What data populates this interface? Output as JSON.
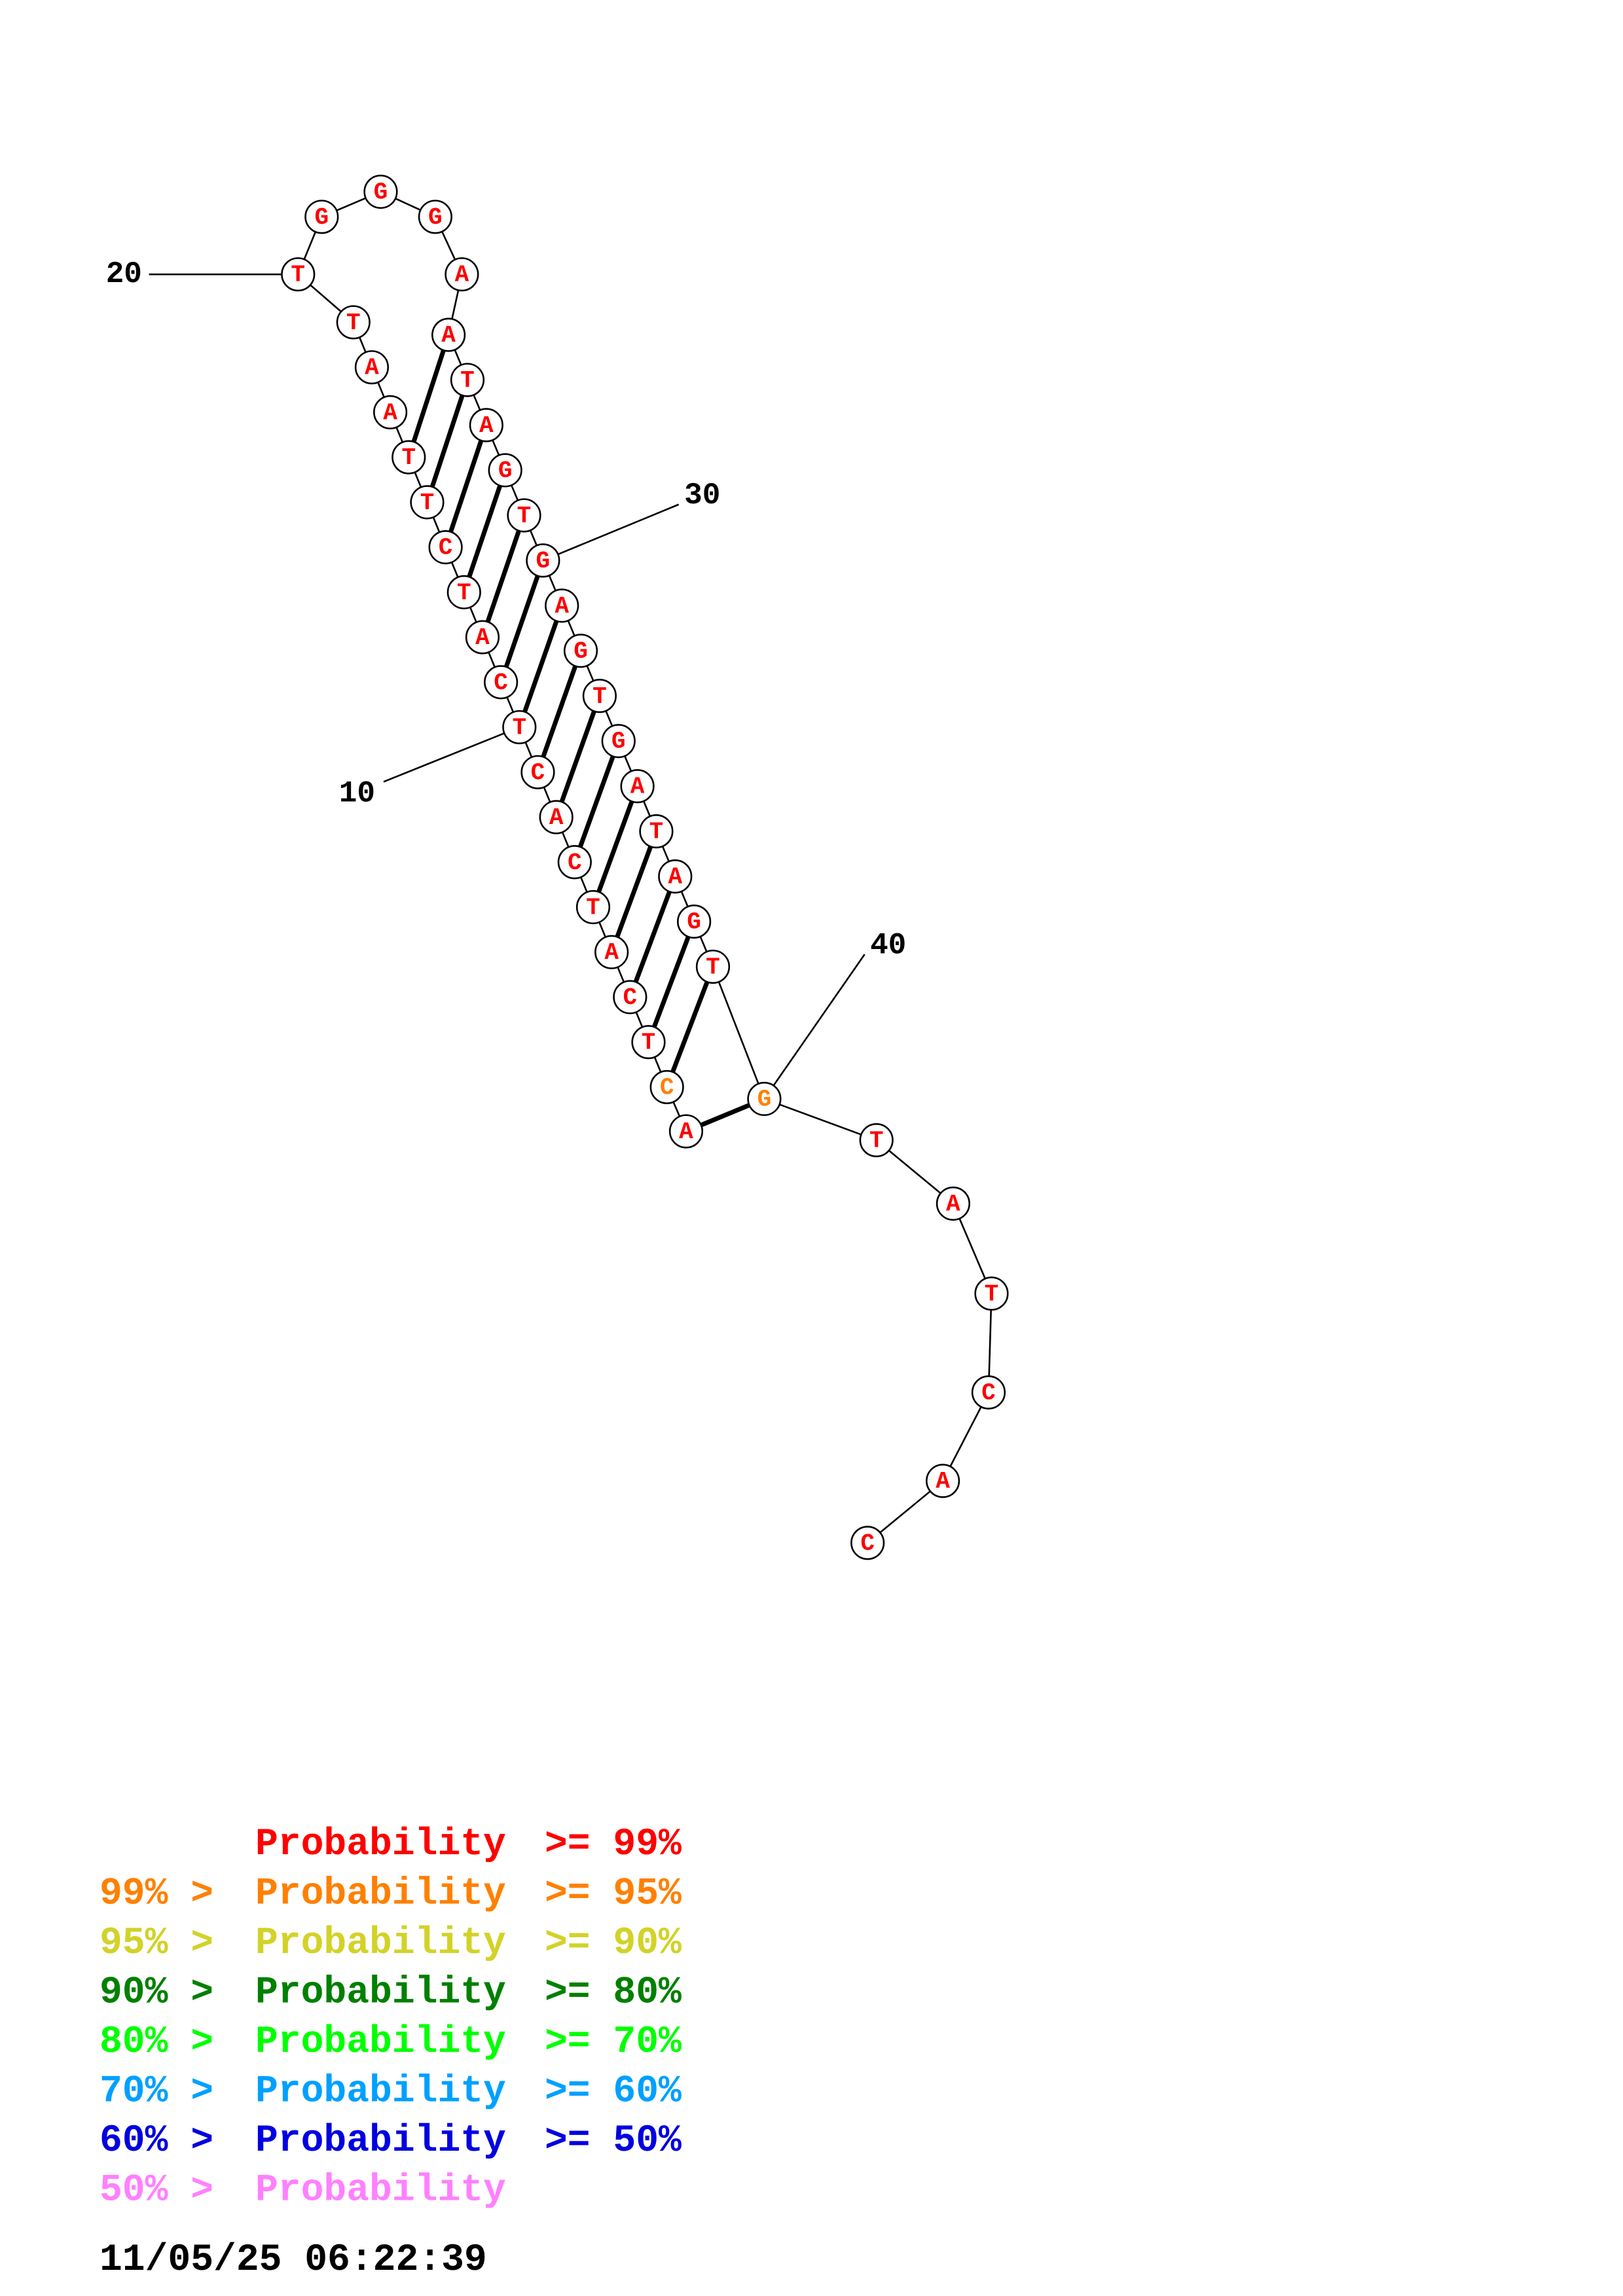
{
  "sequence": [
    "A",
    "C",
    "T",
    "C",
    "A",
    "T",
    "C",
    "A",
    "C",
    "T",
    "C",
    "A",
    "T",
    "C",
    "T",
    "T",
    "A",
    "A",
    "T",
    "T",
    "G",
    "G",
    "G",
    "A",
    "A",
    "T",
    "A",
    "G",
    "T",
    "G",
    "A",
    "G",
    "T",
    "G",
    "A",
    "T",
    "A",
    "G",
    "T",
    "G",
    "T",
    "A",
    "T",
    "C",
    "A",
    "C"
  ],
  "colors": [
    "red",
    "orange",
    "red",
    "red",
    "red",
    "red",
    "red",
    "red",
    "red",
    "red",
    "red",
    "red",
    "red",
    "red",
    "red",
    "red",
    "red",
    "red",
    "red",
    "red",
    "red",
    "red",
    "red",
    "red",
    "red",
    "red",
    "red",
    "red",
    "red",
    "red",
    "red",
    "red",
    "red",
    "red",
    "red",
    "red",
    "red",
    "red",
    "red",
    "orange",
    "red",
    "red",
    "red",
    "red",
    "red",
    "red"
  ],
  "position_labels": [
    {
      "text": "10",
      "index": 10
    },
    {
      "text": "20",
      "index": 20
    },
    {
      "text": "30",
      "index": 30
    },
    {
      "text": "40",
      "index": 40
    }
  ],
  "legend": [
    {
      "prefix": "",
      "mid": "Probability",
      "suffix": ">= 99%",
      "color": "#ff0000"
    },
    {
      "prefix": "99% >",
      "mid": "Probability",
      "suffix": ">= 95%",
      "color": "#ff8000"
    },
    {
      "prefix": "95% >",
      "mid": "Probability",
      "suffix": ">= 90%",
      "color": "#d2d228"
    },
    {
      "prefix": "90% >",
      "mid": "Probability",
      "suffix": ">= 80%",
      "color": "#008000"
    },
    {
      "prefix": "80% >",
      "mid": "Probability",
      "suffix": ">= 70%",
      "color": "#00ff00"
    },
    {
      "prefix": "70% >",
      "mid": "Probability",
      "suffix": ">= 60%",
      "color": "#00a0ff"
    },
    {
      "prefix": "60% >",
      "mid": "Probability",
      "suffix": ">= 50%",
      "color": "#0000e0"
    },
    {
      "prefix": "50% >",
      "mid": "Probability",
      "suffix": "",
      "color": "#ff80ff"
    }
  ],
  "timestamp": "11/05/25 06:22:39",
  "color_map": {
    "red": "#ff0000",
    "orange": "#ff8000"
  }
}
